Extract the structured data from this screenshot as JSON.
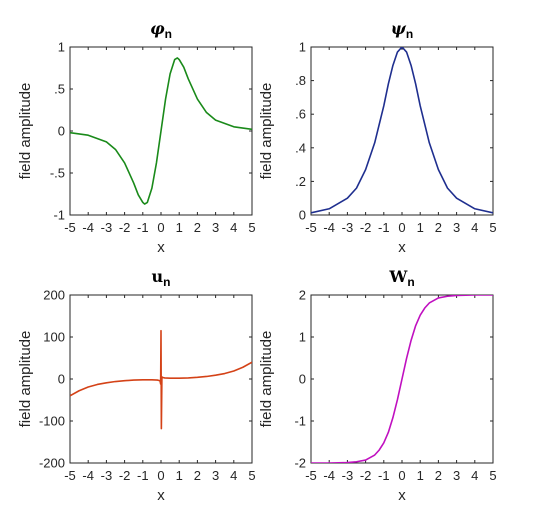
{
  "chart_data": [
    {
      "type": "line",
      "title_symbol": "φ",
      "title_subscript": "n",
      "title_italic": true,
      "xlabel": "x",
      "ylabel": "field amplitude",
      "xlim": [
        -5,
        5
      ],
      "ylim": [
        -1,
        1
      ],
      "xticks": [
        -5,
        -4,
        -3,
        -2,
        -1,
        0,
        1,
        2,
        3,
        4,
        5
      ],
      "yticks": [
        -1,
        -0.5,
        0,
        0.5,
        1
      ],
      "color": "#1a8a1a",
      "x": [
        -5,
        -4,
        -3,
        -2.5,
        -2,
        -1.5,
        -1.25,
        -1,
        -0.9,
        -0.75,
        -0.5,
        -0.25,
        0,
        0.25,
        0.5,
        0.75,
        0.9,
        1,
        1.25,
        1.5,
        2,
        2.5,
        3,
        4,
        5
      ],
      "y": [
        -0.02,
        -0.05,
        -0.13,
        -0.22,
        -0.38,
        -0.62,
        -0.76,
        -0.85,
        -0.87,
        -0.85,
        -0.68,
        -0.38,
        0,
        0.38,
        0.68,
        0.85,
        0.87,
        0.85,
        0.76,
        0.62,
        0.38,
        0.22,
        0.13,
        0.05,
        0.02
      ]
    },
    {
      "type": "line",
      "title_symbol": "ψ",
      "title_subscript": "n",
      "title_italic": true,
      "xlabel": "x",
      "ylabel": "field amplitude",
      "xlim": [
        -5,
        5
      ],
      "ylim": [
        0,
        1
      ],
      "xticks": [
        -5,
        -4,
        -3,
        -2,
        -1,
        0,
        1,
        2,
        3,
        4,
        5
      ],
      "yticks": [
        0,
        0.2,
        0.4,
        0.6,
        0.8,
        1
      ],
      "color": "#1f2f8f",
      "x": [
        -5,
        -4,
        -3,
        -2.5,
        -2,
        -1.5,
        -1,
        -0.75,
        -0.5,
        -0.25,
        0,
        0.25,
        0.5,
        0.75,
        1,
        1.5,
        2,
        2.5,
        3,
        4,
        5
      ],
      "y": [
        0.013,
        0.037,
        0.1,
        0.16,
        0.27,
        0.43,
        0.65,
        0.78,
        0.89,
        0.97,
        1,
        0.97,
        0.89,
        0.78,
        0.65,
        0.43,
        0.27,
        0.16,
        0.1,
        0.037,
        0.013
      ]
    },
    {
      "type": "line",
      "title_symbol": "u",
      "title_subscript": "n",
      "title_italic": false,
      "xlabel": "x",
      "ylabel": "field amplitude",
      "xlim": [
        -5,
        5
      ],
      "ylim": [
        -200,
        200
      ],
      "xticks": [
        -5,
        -4,
        -3,
        -2,
        -1,
        0,
        1,
        2,
        3,
        4,
        5
      ],
      "yticks": [
        -200,
        -100,
        0,
        100,
        200
      ],
      "color": "#d44217",
      "x": [
        -5,
        -4.5,
        -4,
        -3.5,
        -3,
        -2.5,
        -2,
        -1.5,
        -1,
        -0.5,
        -0.2,
        -0.1,
        -0.05,
        -0.02,
        0,
        0.02,
        0.05,
        0.1,
        0.2,
        0.5,
        1,
        1.5,
        2,
        2.5,
        3,
        3.5,
        4,
        4.5,
        5
      ],
      "y": [
        -40,
        -28,
        -19,
        -13,
        -9,
        -6,
        -4,
        -2.6,
        -2,
        -1.9,
        -2.5,
        -3.5,
        -5,
        -12,
        115,
        -118,
        5,
        3.5,
        2.5,
        1.9,
        2,
        2.6,
        4,
        6,
        9,
        13,
        19,
        28,
        40
      ]
    },
    {
      "type": "line",
      "title_symbol": "W",
      "title_subscript": "n",
      "title_italic": false,
      "xlabel": "x",
      "ylabel": "field amplitude",
      "xlim": [
        -5,
        5
      ],
      "ylim": [
        -2,
        2
      ],
      "xticks": [
        -5,
        -4,
        -3,
        -2,
        -1,
        0,
        1,
        2,
        3,
        4,
        5
      ],
      "yticks": [
        -2,
        -1,
        0,
        1,
        2
      ],
      "color": "#c010c0",
      "x": [
        -5,
        -4,
        -3,
        -2.5,
        -2,
        -1.5,
        -1.25,
        -1,
        -0.75,
        -0.5,
        -0.25,
        0,
        0.25,
        0.5,
        0.75,
        1,
        1.25,
        1.5,
        2,
        2.5,
        3,
        4,
        5
      ],
      "y": [
        -2,
        -2,
        -1.99,
        -1.97,
        -1.93,
        -1.81,
        -1.69,
        -1.52,
        -1.27,
        -0.92,
        -0.49,
        0,
        0.49,
        0.92,
        1.27,
        1.52,
        1.69,
        1.81,
        1.93,
        1.97,
        1.99,
        2,
        2
      ]
    }
  ]
}
